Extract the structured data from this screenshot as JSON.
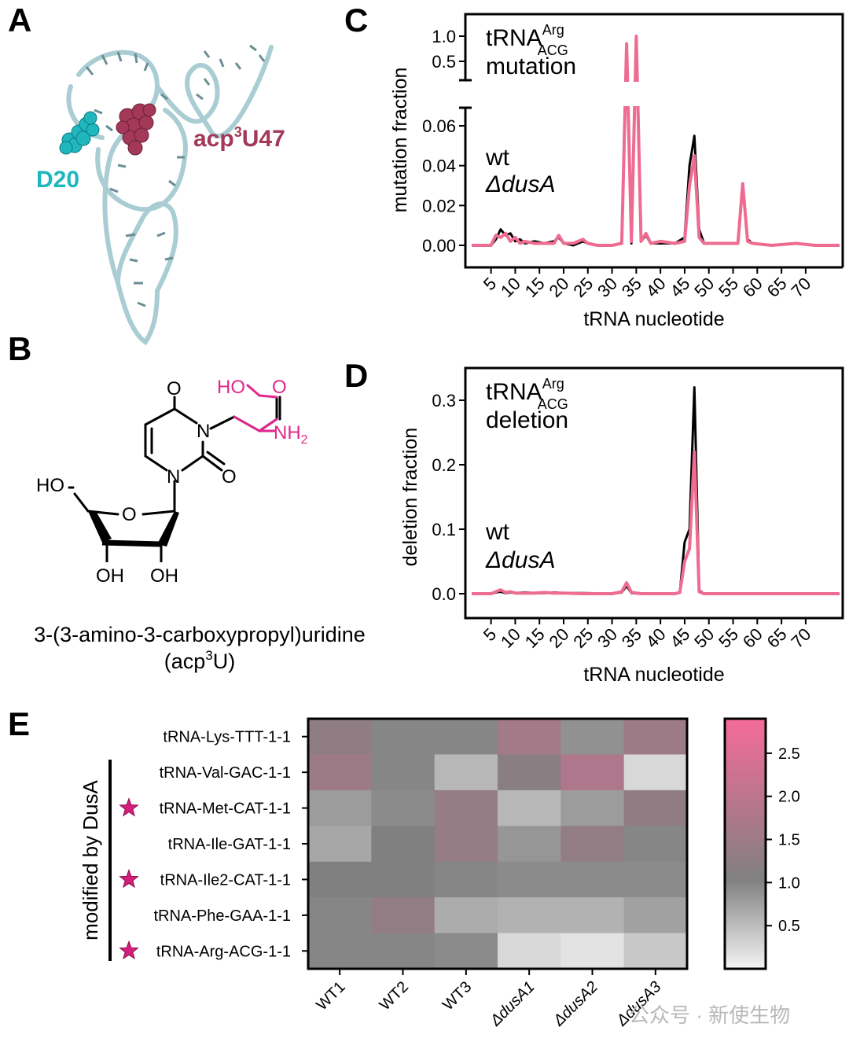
{
  "panels": {
    "A": {
      "letter": "A",
      "labels": {
        "d20": "D20",
        "acp_main": "acp",
        "acp_sup": "3",
        "acp_rest": "U47"
      },
      "colors": {
        "d20": "#1fb6bd",
        "acp": "#a33858",
        "trna": "#a9cdd2"
      }
    },
    "B": {
      "letter": "B",
      "atoms": {
        "o_top": "O",
        "o_right": "O",
        "n_top": "N",
        "n_bottom": "N",
        "ho": "HO",
        "ring_o": "O",
        "oh1": "OH",
        "oh2": "OH",
        "hooc": "HO",
        "o_acid": "O",
        "nh": "NH",
        "nh_sub": "2"
      },
      "caption_line1": "3-(3-amino-3-carboxypropyl)uridine",
      "caption_line2_a": "(acp",
      "caption_line2_sup": "3",
      "caption_line2_b": "U)",
      "colors": {
        "amino_acid": "#e1288c"
      }
    },
    "C": {
      "letter": "C",
      "legend": {
        "trna": "tRNA",
        "sup": "Arg",
        "sub": "ACG",
        "kind": "mutation",
        "wt": "wt",
        "dusa": "ΔdusA"
      }
    },
    "D": {
      "letter": "D",
      "legend": {
        "trna": "tRNA",
        "sup": "Arg",
        "sub": "ACG",
        "kind": "deletion",
        "wt": "wt",
        "dusa": "ΔdusA"
      }
    },
    "E": {
      "letter": "E",
      "bracket_label": "modified by DusA"
    }
  },
  "chart_data": [
    {
      "type": "line",
      "panel": "C",
      "xlabel": "tRNA nucleotide",
      "ylabel": "mutation fraction",
      "x_ticks": [
        "5",
        "10",
        "15",
        "20",
        "25",
        "30",
        "35",
        "40",
        "45",
        "50",
        "55",
        "60",
        "65",
        "70"
      ],
      "y_ticks_lower": [
        "0.00",
        "0.02",
        "0.04",
        "0.06"
      ],
      "y_ticks_upper": [
        "0.5",
        "1.0"
      ],
      "y_axis_break": {
        "lower": [
          0,
          0.07
        ],
        "upper": [
          0.3,
          1.1
        ]
      },
      "xlim": [
        1,
        77
      ],
      "series": [
        {
          "name": "wt",
          "color": "#000000",
          "points": [
            [
              1,
              0
            ],
            [
              5,
              0
            ],
            [
              6,
              0.003
            ],
            [
              7,
              0.008
            ],
            [
              8,
              0.005
            ],
            [
              9,
              0.006
            ],
            [
              10,
              0.002
            ],
            [
              11,
              0.003
            ],
            [
              12,
              0.001
            ],
            [
              14,
              0.002
            ],
            [
              16,
              0.001
            ],
            [
              18,
              0.002
            ],
            [
              19,
              0.004
            ],
            [
              20,
              0.001
            ],
            [
              22,
              0
            ],
            [
              24,
              0.002
            ],
            [
              25,
              0.001
            ],
            [
              27,
              0
            ],
            [
              30,
              0
            ],
            [
              32,
              0.001
            ],
            [
              33,
              0.85
            ],
            [
              34,
              0.001
            ],
            [
              35,
              1.0
            ],
            [
              36,
              0.002
            ],
            [
              37,
              0.005
            ],
            [
              38,
              0.001
            ],
            [
              40,
              0.001
            ],
            [
              43,
              0.001
            ],
            [
              45,
              0.004
            ],
            [
              46,
              0.04
            ],
            [
              47,
              0.055
            ],
            [
              48,
              0.008
            ],
            [
              49,
              0.001
            ],
            [
              53,
              0.001
            ],
            [
              56,
              0.001
            ],
            [
              57,
              0.03
            ],
            [
              58,
              0.003
            ],
            [
              59,
              0.001
            ],
            [
              63,
              0
            ],
            [
              68,
              0.001
            ],
            [
              72,
              0
            ],
            [
              77,
              0
            ]
          ]
        },
        {
          "name": "ΔdusA",
          "color": "#ee6b91",
          "points": [
            [
              1,
              0
            ],
            [
              5,
              0
            ],
            [
              6,
              0.005
            ],
            [
              7,
              0.004
            ],
            [
              8,
              0.006
            ],
            [
              9,
              0.002
            ],
            [
              10,
              0.004
            ],
            [
              11,
              0.001
            ],
            [
              12,
              0.002
            ],
            [
              14,
              0.001
            ],
            [
              16,
              0.001
            ],
            [
              18,
              0.001
            ],
            [
              19,
              0.005
            ],
            [
              20,
              0.001
            ],
            [
              22,
              0.001
            ],
            [
              24,
              0.003
            ],
            [
              25,
              0.001
            ],
            [
              27,
              0
            ],
            [
              30,
              0
            ],
            [
              32,
              0.001
            ],
            [
              33,
              0.85
            ],
            [
              34,
              0.002
            ],
            [
              35,
              1.0
            ],
            [
              36,
              0.002
            ],
            [
              37,
              0.006
            ],
            [
              38,
              0.001
            ],
            [
              40,
              0.002
            ],
            [
              43,
              0.001
            ],
            [
              45,
              0.002
            ],
            [
              46,
              0.03
            ],
            [
              47,
              0.045
            ],
            [
              48,
              0.004
            ],
            [
              49,
              0.001
            ],
            [
              53,
              0.001
            ],
            [
              56,
              0.001
            ],
            [
              57,
              0.031
            ],
            [
              58,
              0.002
            ],
            [
              59,
              0.001
            ],
            [
              63,
              0
            ],
            [
              68,
              0.001
            ],
            [
              72,
              0
            ],
            [
              77,
              0
            ]
          ]
        }
      ]
    },
    {
      "type": "line",
      "panel": "D",
      "xlabel": "tRNA nucleotide",
      "ylabel": "deletion fraction",
      "x_ticks": [
        "5",
        "10",
        "15",
        "20",
        "25",
        "30",
        "35",
        "40",
        "45",
        "50",
        "55",
        "60",
        "65",
        "70"
      ],
      "y_ticks": [
        "0.0",
        "0.1",
        "0.2",
        "0.3"
      ],
      "ylim": [
        -0.01,
        0.35
      ],
      "xlim": [
        1,
        77
      ],
      "series": [
        {
          "name": "wt",
          "color": "#000000",
          "points": [
            [
              1,
              0
            ],
            [
              5,
              0
            ],
            [
              6,
              0.002
            ],
            [
              7,
              0.003
            ],
            [
              8,
              0.001
            ],
            [
              9,
              0.002
            ],
            [
              10,
              0.001
            ],
            [
              12,
              0.002
            ],
            [
              14,
              0.001
            ],
            [
              16,
              0.001
            ],
            [
              18,
              0.002
            ],
            [
              20,
              0.001
            ],
            [
              24,
              0.001
            ],
            [
              30,
              0
            ],
            [
              32,
              0.002
            ],
            [
              33,
              0.012
            ],
            [
              34,
              0.001
            ],
            [
              36,
              0
            ],
            [
              43,
              0
            ],
            [
              44,
              0.002
            ],
            [
              45,
              0.08
            ],
            [
              46,
              0.1
            ],
            [
              47,
              0.32
            ],
            [
              48,
              0.005
            ],
            [
              49,
              0
            ],
            [
              55,
              0
            ],
            [
              63,
              0
            ],
            [
              70,
              0
            ],
            [
              77,
              0
            ]
          ]
        },
        {
          "name": "ΔdusA",
          "color": "#ee6b91",
          "points": [
            [
              1,
              0
            ],
            [
              5,
              0
            ],
            [
              6,
              0.003
            ],
            [
              7,
              0.006
            ],
            [
              8,
              0.002
            ],
            [
              9,
              0.003
            ],
            [
              10,
              0.001
            ],
            [
              12,
              0.001
            ],
            [
              14,
              0.001
            ],
            [
              16,
              0.002
            ],
            [
              18,
              0.001
            ],
            [
              20,
              0.001
            ],
            [
              24,
              0
            ],
            [
              30,
              0
            ],
            [
              32,
              0.003
            ],
            [
              33,
              0.017
            ],
            [
              34,
              0.002
            ],
            [
              36,
              0
            ],
            [
              43,
              0
            ],
            [
              44,
              0.002
            ],
            [
              45,
              0.05
            ],
            [
              46,
              0.07
            ],
            [
              47,
              0.22
            ],
            [
              48,
              0.003
            ],
            [
              49,
              0
            ],
            [
              55,
              0
            ],
            [
              63,
              0
            ],
            [
              70,
              0
            ],
            [
              77,
              0
            ]
          ]
        }
      ]
    },
    {
      "type": "heatmap",
      "panel": "E",
      "rows": [
        "tRNA-Lys-TTT-1-1",
        "tRNA-Val-GAC-1-1",
        "tRNA-Met-CAT-1-1",
        "tRNA-Ile-GAT-1-1",
        "tRNA-Ile2-CAT-1-1",
        "tRNA-Phe-GAA-1-1",
        "tRNA-Arg-ACG-1-1"
      ],
      "row_starred": [
        false,
        false,
        true,
        false,
        true,
        false,
        true
      ],
      "columns": [
        "WT1",
        "WT2",
        "WT3",
        "ΔdusA1",
        "ΔdusA2",
        "ΔdusA3"
      ],
      "values": [
        [
          1.3,
          1.0,
          1.0,
          1.6,
          0.9,
          1.5
        ],
        [
          1.5,
          1.0,
          0.55,
          1.2,
          1.8,
          0.25
        ],
        [
          0.8,
          0.95,
          1.4,
          0.55,
          0.8,
          1.3
        ],
        [
          0.7,
          1.05,
          1.4,
          0.85,
          1.35,
          1.0
        ],
        [
          1.05,
          1.05,
          1.0,
          0.95,
          0.95,
          0.95
        ],
        [
          1.0,
          1.35,
          0.65,
          0.6,
          0.6,
          0.75
        ],
        [
          1.0,
          1.0,
          0.95,
          0.25,
          0.15,
          0.4
        ]
      ],
      "colorbar": {
        "min": 0.0,
        "max": 2.9,
        "ticks": [
          "0.5",
          "1.0",
          "1.5",
          "2.0",
          "2.5"
        ],
        "tick_values": [
          0.5,
          1.0,
          1.5,
          2.0,
          2.5
        ],
        "low_color": "#f4f4f4",
        "mid_color": "#808080",
        "mid_value": 1.05,
        "high_color": "#f56b9a"
      }
    }
  ],
  "watermark": "公众号 · 新使生物"
}
